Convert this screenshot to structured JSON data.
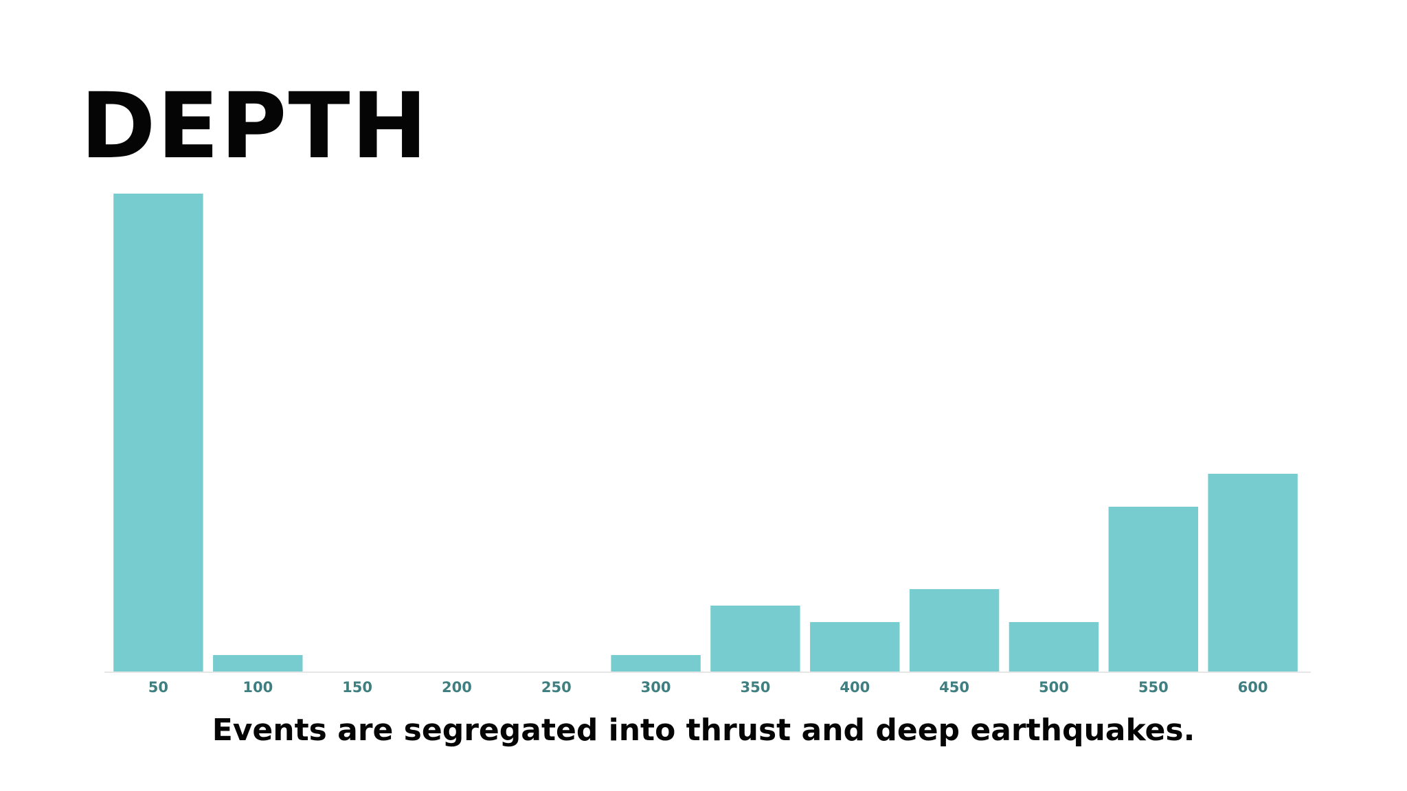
{
  "title": "DEPTH",
  "caption": "Events are segregated into thrust and deep earthquakes.",
  "chart_data": {
    "type": "bar",
    "categories": [
      "50",
      "100",
      "150",
      "200",
      "250",
      "300",
      "350",
      "400",
      "450",
      "500",
      "550",
      "600"
    ],
    "values": [
      29,
      1,
      0,
      0,
      0,
      1,
      4,
      3,
      5,
      3,
      10,
      12
    ],
    "title": "DEPTH",
    "xlabel": "",
    "ylabel": "",
    "ylim": [
      0,
      29
    ],
    "grid": false,
    "legend": "none",
    "colors": {
      "bar": "#77cccf",
      "tick_text": "#3f7f80",
      "baseline": "#e6e6e6"
    }
  }
}
